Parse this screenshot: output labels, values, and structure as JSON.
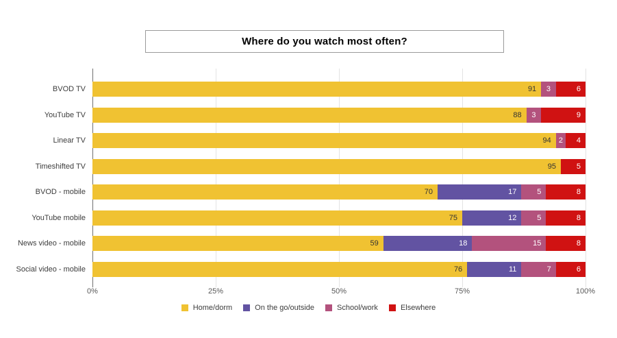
{
  "chart_data": {
    "type": "bar",
    "orientation": "horizontal",
    "stacked": true,
    "title": "Where do you watch most often?",
    "categories": [
      "BVOD TV",
      "YouTube TV",
      "Linear TV",
      "Timeshifted TV",
      "BVOD - mobile",
      "YouTube mobile",
      "News video - mobile",
      "Social video - mobile"
    ],
    "series": [
      {
        "name": "Home/dorm",
        "color": "#f0c232",
        "label_color": "#333333",
        "values": [
          91,
          88,
          94,
          95,
          70,
          75,
          59,
          76
        ]
      },
      {
        "name": "On the go/outside",
        "color": "#6253a2",
        "label_color": "#ffffff",
        "values": [
          0,
          0,
          0,
          0,
          17,
          12,
          18,
          11
        ]
      },
      {
        "name": "School/work",
        "color": "#b3527d",
        "label_color": "#ffffff",
        "values": [
          3,
          3,
          2,
          0,
          5,
          5,
          15,
          7
        ]
      },
      {
        "name": "Elsewhere",
        "color": "#d01212",
        "label_color": "#ffffff",
        "values": [
          6,
          9,
          4,
          5,
          8,
          8,
          8,
          6
        ]
      }
    ],
    "x_axis": {
      "min": 0,
      "max": 100,
      "ticks": [
        {
          "label": "0%",
          "value": 0
        },
        {
          "label": "25%",
          "value": 25
        },
        {
          "label": "50%",
          "value": 50
        },
        {
          "label": "75%",
          "value": 75
        },
        {
          "label": "100%",
          "value": 100
        }
      ]
    },
    "legend_position": "bottom",
    "grid": true
  },
  "colors": {
    "background": "#ffffff",
    "axis_line": "#6f6f6f",
    "gridline": "#e3e3e3",
    "title_border": "#9a9a9a"
  }
}
